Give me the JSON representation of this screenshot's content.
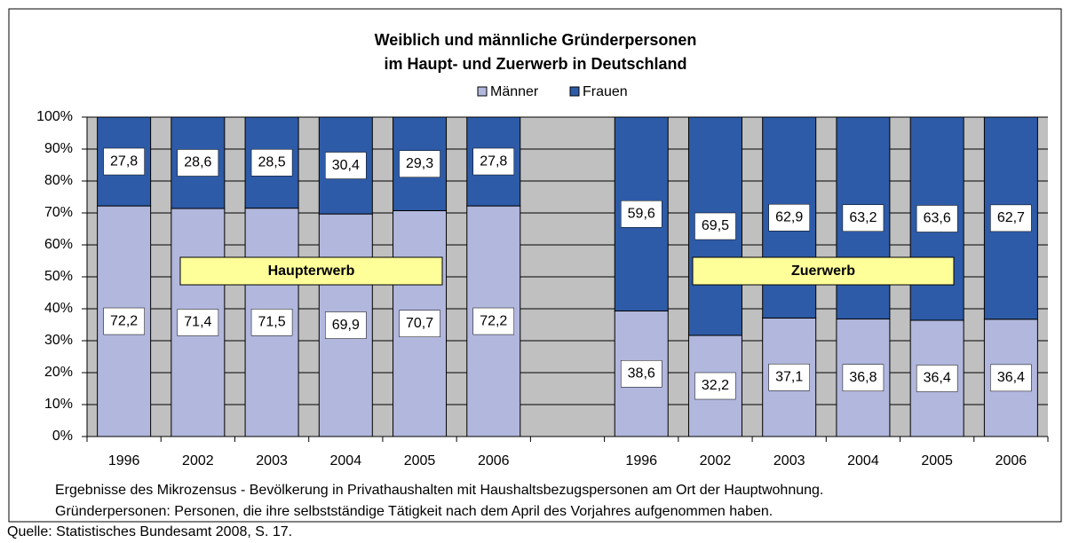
{
  "chart_data": {
    "type": "bar",
    "stacking": "percent",
    "title": [
      "Weiblich und männliche Gründerpersonen",
      "im Haupt- und Zuerwerb in Deutschland"
    ],
    "categories": [
      "1996",
      "2002",
      "2003",
      "2004",
      "2005",
      "2006",
      null,
      "1996",
      "2002",
      "2003",
      "2004",
      "2005",
      "2006"
    ],
    "series": [
      {
        "name": "Männer",
        "color": "#b1b7dd",
        "values": [
          72.2,
          71.4,
          71.5,
          69.9,
          70.7,
          72.2,
          null,
          38.6,
          32.2,
          37.1,
          36.8,
          36.4,
          36.4
        ],
        "value_labels": [
          "72,2",
          "71,4",
          "71,5",
          "69,9",
          "70,7",
          "72,2",
          null,
          "38,6",
          "32,2",
          "37,1",
          "36,8",
          "36,4",
          "36,4"
        ]
      },
      {
        "name": "Frauen",
        "color": "#2e5ba7",
        "values": [
          27.8,
          28.6,
          28.5,
          30.4,
          29.3,
          27.8,
          null,
          59.6,
          69.5,
          62.9,
          63.2,
          63.6,
          62.7
        ],
        "value_labels": [
          "27,8",
          "28,6",
          "28,5",
          "30,4",
          "29,3",
          "27,8",
          null,
          "59,6",
          "69,5",
          "62,9",
          "63,2",
          "63,6",
          "62,7"
        ]
      }
    ],
    "ylim": [
      0,
      100
    ],
    "yticks": [
      {
        "value": 0,
        "label": "0%"
      },
      {
        "value": 10,
        "label": "10%"
      },
      {
        "value": 20,
        "label": "20%"
      },
      {
        "value": 30,
        "label": "30%"
      },
      {
        "value": 40,
        "label": "40%"
      },
      {
        "value": 50,
        "label": "50%"
      },
      {
        "value": 60,
        "label": "60%"
      },
      {
        "value": 70,
        "label": "70%"
      },
      {
        "value": 80,
        "label": "80%"
      },
      {
        "value": 90,
        "label": "90%"
      },
      {
        "value": 100,
        "label": "100%"
      }
    ],
    "grid": true,
    "legend": "top",
    "annotations": [
      "Haupterwerb",
      "Zuerwerb"
    ],
    "notes": [
      "Ergebnisse des Mikrozensus - Bevölkerung in Privathaushalten mit Haushaltsbezugspersonen am Ort der Hauptwohnung.",
      "Gründerpersonen: Personen, die ihre selbstständige Tätigkeit nach dem April des Vorjahres aufgenommen haben."
    ],
    "source": "Quelle: Statistisches Bundesamt 2008, S. 17."
  }
}
